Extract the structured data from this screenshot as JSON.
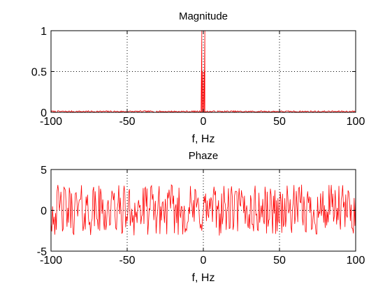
{
  "chart_data": [
    {
      "type": "line",
      "title": "Magnitude",
      "xlabel": "f, Hz",
      "ylabel": "",
      "xlim": [
        -100,
        100
      ],
      "ylim": [
        0,
        1
      ],
      "xticks": [
        -100,
        -50,
        0,
        50,
        100
      ],
      "xtick_labels": [
        "-100",
        "-50",
        "0",
        "50",
        "100"
      ],
      "yticks": [
        0,
        0.5,
        1
      ],
      "ytick_labels": [
        "0",
        "0.5",
        "1"
      ],
      "grid": true,
      "series": [
        {
          "color": "#ff0000",
          "noise_floor": 0.02,
          "peaks": [
            {
              "x": -1,
              "y": 1
            },
            {
              "x": 1,
              "y": 1
            },
            {
              "x": -0.5,
              "y": 0.5
            },
            {
              "x": 0.5,
              "y": 0.5
            }
          ]
        }
      ]
    },
    {
      "type": "line",
      "title": "Phaze",
      "xlabel": "f, Hz",
      "ylabel": "",
      "xlim": [
        -100,
        100
      ],
      "ylim": [
        -5,
        5
      ],
      "xticks": [
        -100,
        -50,
        0,
        50,
        100
      ],
      "xtick_labels": [
        "-100",
        "-50",
        "0",
        "50",
        "100"
      ],
      "yticks": [
        -5,
        0,
        5
      ],
      "ytick_labels": [
        "-5",
        "0",
        "5"
      ],
      "grid": true,
      "series": [
        {
          "color": "#ff0000",
          "value_range": [
            -3.14,
            3.14
          ]
        }
      ]
    }
  ]
}
